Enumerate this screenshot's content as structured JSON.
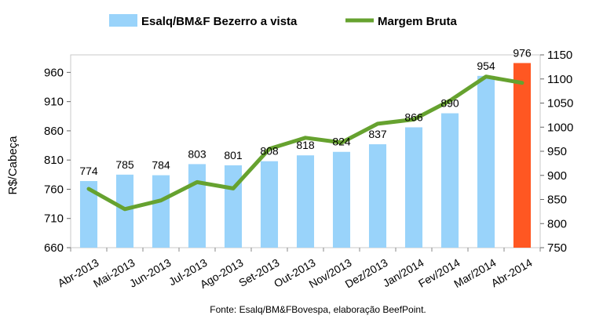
{
  "chart_data": {
    "type": "bar",
    "categories": [
      "Abr-2013",
      "Mai-2013",
      "Jun-2013",
      "Jul-2013",
      "Ago-2013",
      "Set-2013",
      "Out-2013",
      "Nov/2013",
      "Dez/2013",
      "Jan/2014",
      "Fev/2014",
      "Mar/2014",
      "Abr-2014"
    ],
    "series": [
      {
        "name": "Esalq/BM&F Bezerro a vista",
        "type": "bar",
        "axis": "left",
        "color": "#99d3fa",
        "highlight_color": "#ff5722",
        "values": [
          774,
          785,
          784,
          803,
          801,
          808,
          818,
          824,
          837,
          866,
          890,
          954,
          976
        ],
        "labels": [
          "774",
          "785",
          "784",
          "803",
          "801",
          "808",
          "818",
          "824",
          "837",
          "866",
          "890",
          "954",
          "976"
        ]
      },
      {
        "name": "Margem Bruta",
        "type": "line",
        "axis": "right",
        "color": "#66a22f",
        "values": [
          872,
          830,
          848,
          886,
          873,
          955,
          978,
          968,
          1007,
          1016,
          1055,
          1105,
          1092
        ]
      }
    ],
    "ylabel": "R$/Cabeça",
    "ylim": [
      660,
      990
    ],
    "yticks": [
      "660",
      "710",
      "760",
      "810",
      "860",
      "910",
      "960"
    ],
    "y2lim": [
      750,
      1150
    ],
    "y2ticks": [
      "750",
      "800",
      "850",
      "900",
      "950",
      "1000",
      "1050",
      "1100",
      "1150"
    ],
    "grid": false,
    "legend_position": "top"
  },
  "source_note": "Fonte:  Esalq/BM&FBovespa,  elaboração  BeefPoint."
}
